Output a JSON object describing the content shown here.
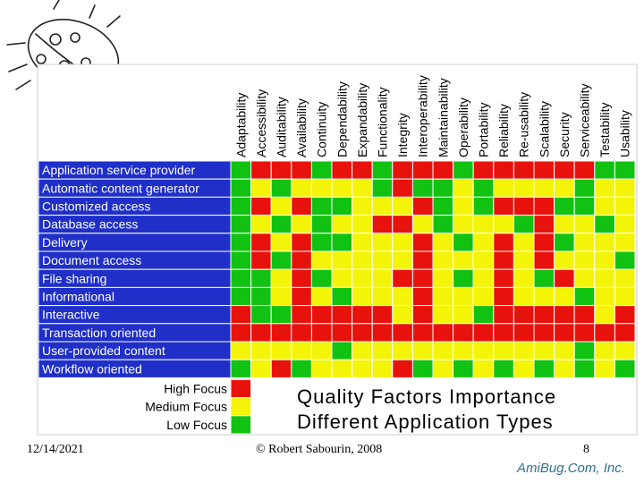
{
  "chart_data": {
    "type": "heatmap",
    "columns": [
      "Adaptability",
      "Accessibility",
      "Auditability",
      "Availability",
      "Continuity",
      "Dependability",
      "Expandability",
      "Functionality",
      "Integrity",
      "Interoperability",
      "Maintainability",
      "Operability",
      "Portability",
      "Reliability",
      "Re-usability",
      "Scalability",
      "Security",
      "Serviceability",
      "Testability",
      "Usability"
    ],
    "rows": [
      "Application service provider",
      "Automatic content generator",
      "Customized access",
      "Database access",
      "Delivery",
      "Document access",
      "File sharing",
      "Informational",
      "Interactive",
      "Transaction oriented",
      "User-provided content",
      "Workflow oriented"
    ],
    "levels": {
      "H": "High Focus",
      "M": "Medium Focus",
      "L": "Low Focus"
    },
    "matrix": [
      [
        "L",
        "H",
        "H",
        "H",
        "L",
        "H",
        "H",
        "L",
        "H",
        "H",
        "H",
        "L",
        "H",
        "H",
        "H",
        "H",
        "H",
        "H",
        "L",
        "L"
      ],
      [
        "L",
        "M",
        "L",
        "M",
        "M",
        "M",
        "M",
        "L",
        "H",
        "L",
        "L",
        "M",
        "L",
        "M",
        "M",
        "M",
        "M",
        "L",
        "M",
        "M"
      ],
      [
        "L",
        "H",
        "M",
        "H",
        "L",
        "L",
        "M",
        "M",
        "M",
        "H",
        "L",
        "M",
        "L",
        "H",
        "H",
        "H",
        "L",
        "L",
        "M",
        "M"
      ],
      [
        "L",
        "M",
        "L",
        "M",
        "L",
        "M",
        "M",
        "H",
        "H",
        "M",
        "L",
        "M",
        "M",
        "M",
        "L",
        "H",
        "M",
        "M",
        "L",
        "M"
      ],
      [
        "L",
        "H",
        "M",
        "H",
        "L",
        "L",
        "M",
        "M",
        "M",
        "H",
        "M",
        "L",
        "M",
        "H",
        "M",
        "H",
        "L",
        "M",
        "M",
        "M"
      ],
      [
        "L",
        "H",
        "L",
        "H",
        "M",
        "M",
        "M",
        "M",
        "M",
        "H",
        "M",
        "M",
        "M",
        "H",
        "M",
        "H",
        "M",
        "M",
        "M",
        "L"
      ],
      [
        "L",
        "L",
        "M",
        "H",
        "L",
        "M",
        "M",
        "M",
        "H",
        "H",
        "M",
        "L",
        "M",
        "H",
        "M",
        "L",
        "H",
        "M",
        "M",
        "M"
      ],
      [
        "L",
        "L",
        "M",
        "H",
        "M",
        "L",
        "M",
        "M",
        "M",
        "H",
        "M",
        "M",
        "M",
        "H",
        "M",
        "M",
        "M",
        "L",
        "M",
        "M"
      ],
      [
        "H",
        "L",
        "L",
        "H",
        "H",
        "H",
        "H",
        "H",
        "M",
        "H",
        "M",
        "M",
        "L",
        "H",
        "H",
        "H",
        "H",
        "H",
        "M",
        "H"
      ],
      [
        "H",
        "H",
        "H",
        "H",
        "H",
        "H",
        "H",
        "H",
        "H",
        "H",
        "H",
        "H",
        "H",
        "H",
        "H",
        "H",
        "H",
        "H",
        "H",
        "H"
      ],
      [
        "M",
        "M",
        "M",
        "M",
        "M",
        "L",
        "M",
        "M",
        "M",
        "M",
        "M",
        "M",
        "M",
        "M",
        "M",
        "M",
        "M",
        "L",
        "M",
        "M"
      ],
      [
        "L",
        "M",
        "H",
        "L",
        "M",
        "M",
        "M",
        "M",
        "H",
        "L",
        "M",
        "L",
        "M",
        "L",
        "M",
        "L",
        "M",
        "L",
        "M",
        "L"
      ]
    ],
    "colors": {
      "H": "#e8120c",
      "M": "#f4f409",
      "L": "#12c212",
      "row_header_bg": "#1f2fc8",
      "grid_line": "#ffffff"
    }
  },
  "caption": {
    "line1": "Quality Factors Importance",
    "line2": "Different Application Types"
  },
  "footer": {
    "date": "12/14/2021",
    "copyright": "© Robert Sabourin, 2008",
    "page": "8",
    "brand": "AmiBug.Com, Inc."
  }
}
